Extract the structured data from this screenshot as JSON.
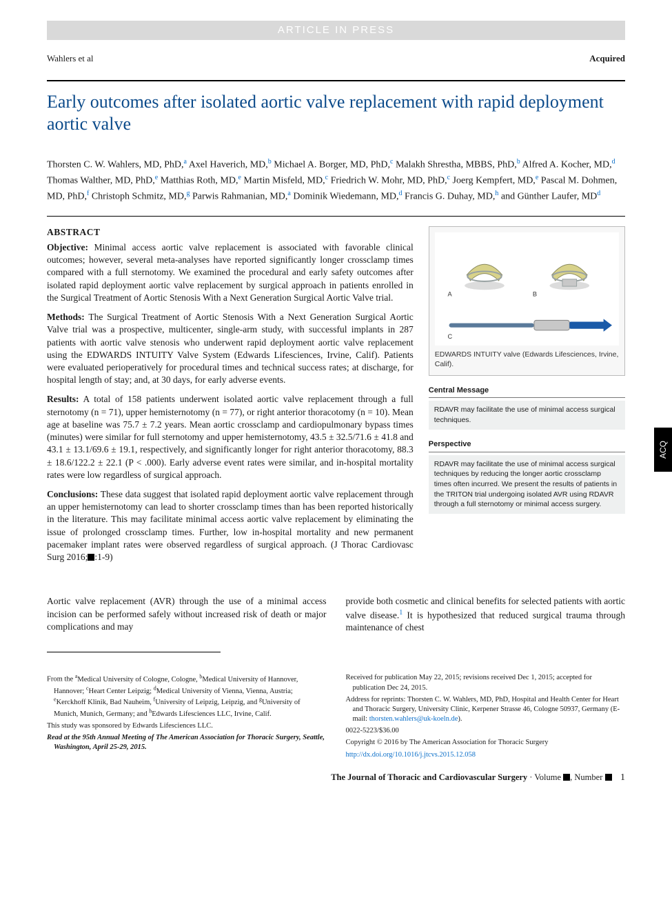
{
  "banner": "ARTICLE IN PRESS",
  "header": {
    "left": "Wahlers et al",
    "right": "Acquired"
  },
  "title": "Early outcomes after isolated aortic valve replacement with rapid deployment aortic valve",
  "authors_html": "Thorsten C. W. Wahlers, MD, PhD,<sup>a</sup> Axel Haverich, MD,<sup>b</sup> Michael A. Borger, MD, PhD,<sup>c</sup> Malakh Shrestha, MBBS, PhD,<sup>b</sup> Alfred A. Kocher, MD,<sup>d</sup> Thomas Walther, MD, PhD,<sup>e</sup> Matthias Roth, MD,<sup>e</sup> Martin Misfeld, MD,<sup>c</sup> Friedrich W. Mohr, MD, PhD,<sup>c</sup> Joerg Kempfert, MD,<sup>e</sup> Pascal M. Dohmen, MD, PhD,<sup>f</sup> Christoph Schmitz, MD,<sup>g</sup> Parwis Rahmanian, MD,<sup>a</sup> Dominik Wiedemann, MD,<sup>d</sup> Francis G. Duhay, MD,<sup>h</sup> and Günther Laufer, MD<sup>d</sup>",
  "abstract": {
    "heading": "ABSTRACT",
    "objective_label": "Objective:",
    "objective": " Minimal access aortic valve replacement is associated with favorable clinical outcomes; however, several meta-analyses have reported significantly longer crossclamp times compared with a full sternotomy. We examined the procedural and early safety outcomes after isolated rapid deployment aortic valve replacement by surgical approach in patients enrolled in the Surgical Treatment of Aortic Stenosis With a Next Generation Surgical Aortic Valve trial.",
    "methods_label": "Methods:",
    "methods": " The Surgical Treatment of Aortic Stenosis With a Next Generation Surgical Aortic Valve trial was a prospective, multicenter, single-arm study, with successful implants in 287 patients with aortic valve stenosis who underwent rapid deployment aortic valve replacement using the EDWARDS INTUITY Valve System (Edwards Lifesciences, Irvine, Calif). Patients were evaluated perioperatively for procedural times and technical success rates; at discharge, for hospital length of stay; and, at 30 days, for early adverse events.",
    "results_label": "Results:",
    "results": " A total of 158 patients underwent isolated aortic valve replacement through a full sternotomy (n = 71), upper hemisternotomy (n = 77), or right anterior thoracotomy (n = 10). Mean age at baseline was 75.7 ± 7.2 years. Mean aortic crossclamp and cardiopulmonary bypass times (minutes) were similar for full sternotomy and upper hemisternotomy, 43.5 ± 32.5/71.6 ± 41.8 and 43.1 ± 13.1/69.6 ± 19.1, respectively, and significantly longer for right anterior thoracotomy, 88.3 ± 18.6/122.2 ± 22.1 (P < .000). Early adverse event rates were similar, and in-hospital mortality rates were low regardless of surgical approach.",
    "conclusions_label": "Conclusions:",
    "conclusions": " These data suggest that isolated rapid deployment aortic valve replacement through an upper hemisternotomy can lead to shorter crossclamp times than has been reported historically in the literature. This may facilitate minimal access aortic valve replacement by eliminating the issue of prolonged crossclamp times. Further, low in-hospital mortality and new permanent pacemaker implant rates were observed regardless of surgical approach. (J Thorac Cardiovasc Surg 2016;■:1-9)"
  },
  "figure": {
    "caption": "EDWARDS INTUITY valve (Edwards Lifesciences, Irvine, Calif).",
    "labels": {
      "a": "A",
      "b": "B",
      "c": "C"
    },
    "colors": {
      "valve_body": "#d8d28a",
      "valve_shadow": "#c8c8c8",
      "frame": "#9aa3a3",
      "tool_handle": "#5a7a9a",
      "tool_blue": "#1a5aa8",
      "bg": "#ffffff"
    }
  },
  "central_message": {
    "head": "Central Message",
    "body": "RDAVR may facilitate the use of minimal access surgical techniques."
  },
  "perspective": {
    "head": "Perspective",
    "body": "RDAVR may facilitate the use of minimal access surgical techniques by reducing the longer aortic crossclamp times often incurred. We present the results of patients in the TRITON trial undergoing isolated AVR using RDAVR through a full sternotomy or minimal access surgery."
  },
  "side_tab": "ACQ",
  "body": {
    "left": "Aortic valve replacement (AVR) through the use of a minimal access incision can be performed safely without increased risk of death or major complications and may",
    "right_a": "provide both cosmetic and clinical benefits for selected patients with aortic valve disease.",
    "right_b": " It is hypothesized that reduced surgical trauma through maintenance of chest"
  },
  "footnotes": {
    "left": {
      "from": "From the ",
      "affil": "Medical University of Cologne, Cologne, <sup>b</sup>Medical University of Hannover, Hannover; <sup>c</sup>Heart Center Leipzig; <sup>d</sup>Medical University of Vienna, Vienna, Austria; <sup>e</sup>Kerckhoff Klinik, Bad Nauheim, <sup>f</sup>University of Leipzig, Leipzig, and <sup>g</sup>University of Munich, Munich, Germany; and <sup>h</sup>Edwards Lifesciences LLC, Irvine, Calif.",
      "sponsor": "This study was sponsored by Edwards Lifesciences LLC.",
      "read": "Read at the 95th Annual Meeting of The American Association for Thoracic Surgery, Seattle, Washington, April 25-29, 2015."
    },
    "right": {
      "received": "Received for publication May 22, 2015; revisions received Dec 1, 2015; accepted for publication Dec 24, 2015.",
      "address": "Address for reprints: Thorsten C. W. Wahlers, MD, PhD, Hospital and Health Center for Heart and Thoracic Surgery, University Clinic, Kerpener Strasse 46, Cologne 50937, Germany (E-mail: ",
      "email": "thorsten.wahlers@uk-koeln.de",
      "address_end": ").",
      "issn": "0022-5223/$36.00",
      "copyright": "Copyright © 2016 by The American Association for Thoracic Surgery",
      "doi": "http://dx.doi.org/10.1016/j.jtcvs.2015.12.058"
    }
  },
  "footer": {
    "journal": "The Journal of Thoracic and Cardiovascular Surgery",
    "sep": " · ",
    "vol": "Volume ",
    "num": ", Number ",
    "page": "1"
  }
}
